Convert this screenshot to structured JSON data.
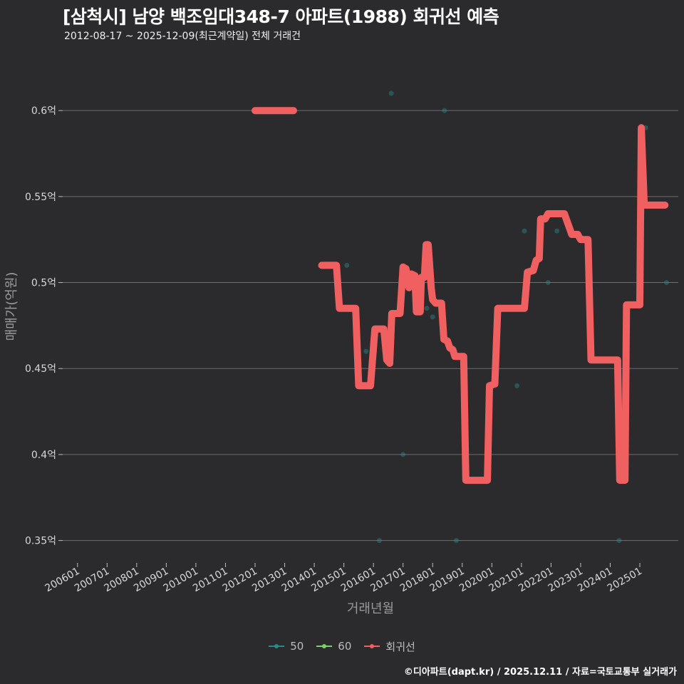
{
  "header": {
    "title": "[삼척시] 남양 백조임대348-7 아파트(1988) 회귀선 예측",
    "subtitle": "2012-08-17 ~ 2025-12-09(최근계약일) 전체 거래건"
  },
  "footer": {
    "credit": "©디아파트(dapt.kr) / 2025.12.11 / 자료=국토교통부 실거래가"
  },
  "colors": {
    "background": "#2b2a2c",
    "grid": "#6e6e6e",
    "series_50": "#2a8a8a",
    "series_60": "#7bd26a",
    "regression": "#f06060"
  },
  "chart_data": {
    "type": "line",
    "title": "[삼척시] 남양 백조임대348-7 아파트(1988) 회귀선 예측",
    "xlabel": "거래년월",
    "ylabel": "매매가(억원)",
    "ylim": [
      0.337,
      0.627
    ],
    "xlim": [
      2005.5,
      2026.3
    ],
    "y_ticks": [
      0.35,
      0.4,
      0.45,
      0.5,
      0.55,
      0.6
    ],
    "y_tick_labels": [
      "0.35억",
      "0.4억",
      "0.45억",
      "0.5억",
      "0.55억",
      "0.6억"
    ],
    "x_ticks": [
      2006,
      2007,
      2008,
      2009,
      2010,
      2011,
      2012,
      2013,
      2014,
      2015,
      2016,
      2017,
      2018,
      2019,
      2020,
      2021,
      2022,
      2023,
      2024,
      2025
    ],
    "x_tick_labels": [
      "200601",
      "200701",
      "200801",
      "200901",
      "201001",
      "201101",
      "201201",
      "201301",
      "201401",
      "201501",
      "201601",
      "201701",
      "201801",
      "201901",
      "202001",
      "202101",
      "202201",
      "202301",
      "202401",
      "202501"
    ],
    "grid": true,
    "legend_position": "bottom",
    "legend": [
      {
        "name": "50",
        "type": "point"
      },
      {
        "name": "60",
        "type": "point"
      },
      {
        "name": "회귀선",
        "type": "line"
      }
    ],
    "series": [
      {
        "name": "50",
        "kind": "scatter",
        "points": [
          [
            2015.1,
            0.51
          ],
          [
            2015.75,
            0.46
          ],
          [
            2016.2,
            0.35
          ],
          [
            2016.6,
            0.61
          ],
          [
            2017.0,
            0.4
          ],
          [
            2017.8,
            0.485
          ],
          [
            2018.0,
            0.48
          ],
          [
            2018.4,
            0.6
          ],
          [
            2018.8,
            0.35
          ],
          [
            2020.85,
            0.44
          ],
          [
            2021.1,
            0.53
          ],
          [
            2021.9,
            0.5
          ],
          [
            2022.2,
            0.53
          ],
          [
            2024.3,
            0.35
          ],
          [
            2025.2,
            0.59
          ],
          [
            2025.9,
            0.5
          ]
        ]
      },
      {
        "name": "60",
        "kind": "scatter",
        "points": []
      },
      {
        "name": "회귀선",
        "kind": "line",
        "segments": [
          [
            [
              2012.0,
              0.6
            ],
            [
              2013.3,
              0.6
            ]
          ],
          [
            [
              2014.25,
              0.51
            ],
            [
              2014.75,
              0.51
            ],
            [
              2014.85,
              0.485
            ],
            [
              2015.4,
              0.485
            ],
            [
              2015.5,
              0.44
            ],
            [
              2015.9,
              0.44
            ],
            [
              2016.05,
              0.473
            ],
            [
              2016.35,
              0.473
            ],
            [
              2016.45,
              0.455
            ],
            [
              2016.55,
              0.453
            ],
            [
              2016.62,
              0.482
            ],
            [
              2016.9,
              0.482
            ],
            [
              2017.0,
              0.509
            ],
            [
              2017.1,
              0.508
            ],
            [
              2017.2,
              0.497
            ],
            [
              2017.28,
              0.505
            ],
            [
              2017.4,
              0.504
            ],
            [
              2017.45,
              0.483
            ],
            [
              2017.58,
              0.483
            ],
            [
              2017.62,
              0.503
            ],
            [
              2017.72,
              0.503
            ],
            [
              2017.78,
              0.522
            ],
            [
              2017.85,
              0.522
            ],
            [
              2017.95,
              0.497
            ],
            [
              2018.0,
              0.49
            ],
            [
              2018.1,
              0.488
            ],
            [
              2018.3,
              0.488
            ],
            [
              2018.38,
              0.467
            ],
            [
              2018.5,
              0.466
            ],
            [
              2018.58,
              0.462
            ],
            [
              2018.68,
              0.461
            ],
            [
              2018.75,
              0.457
            ],
            [
              2019.05,
              0.457
            ],
            [
              2019.12,
              0.385
            ],
            [
              2019.85,
              0.385
            ],
            [
              2019.92,
              0.44
            ],
            [
              2020.1,
              0.441
            ],
            [
              2020.2,
              0.485
            ],
            [
              2021.1,
              0.485
            ],
            [
              2021.2,
              0.506
            ],
            [
              2021.4,
              0.507
            ],
            [
              2021.5,
              0.513
            ],
            [
              2021.6,
              0.514
            ],
            [
              2021.65,
              0.537
            ],
            [
              2021.8,
              0.537
            ],
            [
              2021.9,
              0.54
            ],
            [
              2022.45,
              0.54
            ],
            [
              2022.7,
              0.528
            ],
            [
              2022.9,
              0.528
            ],
            [
              2023.0,
              0.525
            ],
            [
              2023.25,
              0.525
            ],
            [
              2023.35,
              0.455
            ],
            [
              2024.25,
              0.455
            ],
            [
              2024.32,
              0.385
            ],
            [
              2024.5,
              0.385
            ],
            [
              2024.55,
              0.487
            ],
            [
              2025.0,
              0.487
            ],
            [
              2025.05,
              0.59
            ],
            [
              2025.15,
              0.545
            ],
            [
              2025.85,
              0.545
            ]
          ]
        ]
      }
    ]
  }
}
